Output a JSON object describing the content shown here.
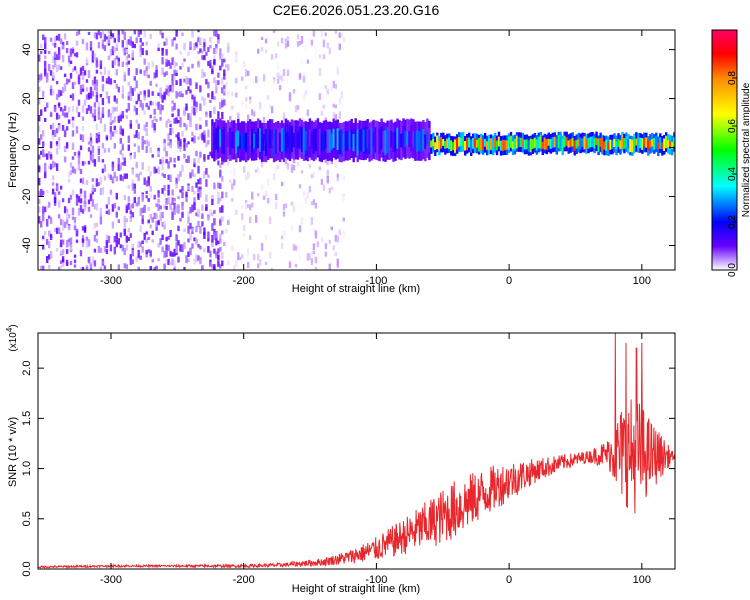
{
  "title": "C2E6.2026.051.23.20.G16",
  "colors": {
    "axis": "#000000",
    "snr_line": "#e8262b",
    "background": "#ffffff"
  },
  "chart_data": [
    {
      "type": "heatmap",
      "xlabel": "Height of straight line (km)",
      "ylabel": "Frequency (Hz)",
      "xlim": [
        -355,
        125
      ],
      "ylim": [
        -50,
        48
      ],
      "xticks": [
        -300,
        -200,
        -100,
        0,
        100
      ],
      "yticks": [
        -40,
        -20,
        0,
        20,
        40
      ],
      "colorbar": {
        "label": "Normalized spectral amplitude",
        "range": [
          0,
          1
        ],
        "ticks": [
          0.0,
          0.2,
          0.4,
          0.6,
          0.8
        ],
        "tick_labels": [
          "0.0",
          "0.2",
          "0.4",
          "0.6",
          "0.8"
        ],
        "colormap": [
          "#ffffff",
          "#6600ff",
          "#0000ff",
          "#00ffff",
          "#00ff00",
          "#ffff00",
          "#ff8800",
          "#ff0000",
          "#ff0066"
        ]
      },
      "regions": [
        {
          "x_range": [
            -355,
            -215
          ],
          "freq_range": [
            -50,
            48
          ],
          "amplitude": [
            0.02,
            0.14
          ],
          "description": "scattered noise"
        },
        {
          "x_range": [
            -215,
            -125
          ],
          "freq_range": [
            -50,
            48
          ],
          "amplitude": [
            0.0,
            0.06
          ],
          "description": "sparse noise"
        },
        {
          "x_range": [
            -225,
            -60
          ],
          "freq_center": 3,
          "freq_halfwidth": 8,
          "amplitude": [
            0.1,
            0.35
          ]
        },
        {
          "x_range": [
            -60,
            125
          ],
          "freq_center": 1.5,
          "freq_halfwidth": 4,
          "amplitude": [
            0.3,
            0.85
          ]
        }
      ]
    },
    {
      "type": "line",
      "xlabel": "Height of straight line (km)",
      "ylabel": "SNR (10 * v/v)",
      "y_multiplier": "(x10",
      "y_multiplier_exp": "4",
      "xlim": [
        -355,
        125
      ],
      "ylim": [
        0,
        2.35
      ],
      "xticks": [
        -300,
        -200,
        -100,
        0,
        100
      ],
      "yticks": [
        0.0,
        0.5,
        1.0,
        1.5,
        2.0
      ],
      "ytick_labels": [
        "0.0",
        "0.5",
        "1.0",
        "1.5",
        "2.0"
      ],
      "series": [
        {
          "x": [
            -355,
            -300,
            -250,
            -200,
            -170,
            -140,
            -120,
            -100,
            -80,
            -60,
            -40,
            -20,
            0,
            20,
            40,
            60,
            75,
            85,
            95,
            105,
            125
          ],
          "y": [
            0.02,
            0.03,
            0.03,
            0.03,
            0.04,
            0.07,
            0.12,
            0.2,
            0.32,
            0.45,
            0.6,
            0.75,
            0.88,
            0.98,
            1.06,
            1.12,
            1.15,
            1.15,
            1.15,
            1.13,
            1.12
          ],
          "noise_amplitude": [
            0.01,
            0.01,
            0.01,
            0.015,
            0.02,
            0.04,
            0.07,
            0.12,
            0.18,
            0.25,
            0.3,
            0.25,
            0.2,
            0.12,
            0.08,
            0.06,
            0.15,
            0.5,
            0.6,
            0.4,
            0.02
          ],
          "peaks": [
            {
              "x": 80,
              "y": 2.35
            },
            {
              "x": 88,
              "y": 2.25
            },
            {
              "x": 96,
              "y": 2.2
            },
            {
              "x": 100,
              "y": 2.25
            }
          ]
        }
      ]
    }
  ]
}
